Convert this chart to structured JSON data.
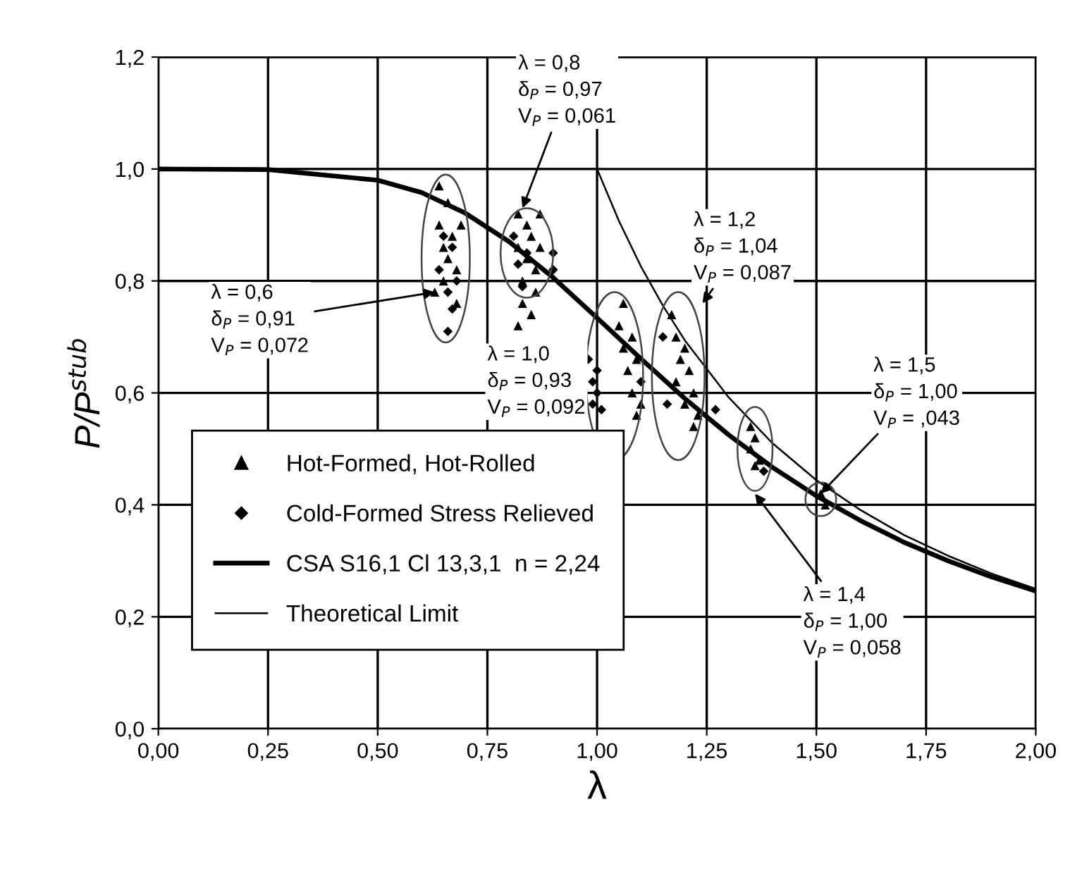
{
  "chart_data": {
    "type": "scatter",
    "xlabel": "λ",
    "ylabel": "P/P$^{stub}$",
    "xlim": [
      0,
      2
    ],
    "ylim": [
      0,
      1.2
    ],
    "xticks": [
      {
        "value": 0,
        "label": "0,00"
      },
      {
        "value": 0.25,
        "label": "0,25"
      },
      {
        "value": 0.5,
        "label": "0,50"
      },
      {
        "value": 0.75,
        "label": "0,75"
      },
      {
        "value": 1.0,
        "label": "1,00"
      },
      {
        "value": 1.25,
        "label": "1,25"
      },
      {
        "value": 1.5,
        "label": "1,50"
      },
      {
        "value": 1.75,
        "label": "1,75"
      },
      {
        "value": 2.0,
        "label": "2,00"
      }
    ],
    "yticks": [
      {
        "value": 0,
        "label": "0,0"
      },
      {
        "value": 0.2,
        "label": "0,2"
      },
      {
        "value": 0.4,
        "label": "0,4"
      },
      {
        "value": 0.6,
        "label": "0,6"
      },
      {
        "value": 0.8,
        "label": "0,8"
      },
      {
        "value": 1.0,
        "label": "1,0"
      },
      {
        "value": 1.2,
        "label": "1,2"
      }
    ],
    "grid": true,
    "legend": "bottom left",
    "series": [
      {
        "name": "Hot-Formed, Hot-Rolled",
        "marker": "triangle",
        "color": "#000000",
        "x": [
          0.64,
          0.64,
          0.65,
          0.65,
          0.66,
          0.66,
          0.67,
          0.68,
          0.68,
          0.69,
          0.63,
          0.82,
          0.82,
          0.83,
          0.83,
          0.84,
          0.84,
          0.85,
          0.86,
          0.86,
          0.87,
          0.87,
          0.82,
          0.85,
          1.05,
          1.06,
          1.06,
          1.07,
          1.08,
          1.08,
          1.09,
          1.09,
          1.1,
          1.17,
          1.18,
          1.18,
          1.19,
          1.2,
          1.2,
          1.21,
          1.22,
          1.22,
          1.23,
          1.35,
          1.35,
          1.36,
          1.36,
          1.37,
          1.51,
          1.52
        ],
        "values": [
          0.97,
          0.9,
          0.86,
          0.8,
          0.94,
          0.84,
          0.88,
          0.82,
          0.76,
          0.9,
          0.78,
          0.92,
          0.86,
          0.8,
          0.76,
          0.84,
          0.9,
          0.88,
          0.82,
          0.78,
          0.86,
          0.92,
          0.72,
          0.74,
          0.72,
          0.68,
          0.76,
          0.64,
          0.6,
          0.7,
          0.56,
          0.66,
          0.58,
          0.74,
          0.7,
          0.62,
          0.66,
          0.58,
          0.68,
          0.64,
          0.54,
          0.6,
          0.56,
          0.54,
          0.5,
          0.47,
          0.52,
          0.48,
          0.42,
          0.4
        ]
      },
      {
        "name": "Cold-Formed Stress Relieved",
        "marker": "diamond",
        "color": "#000000",
        "x": [
          0.64,
          0.65,
          0.66,
          0.67,
          0.67,
          0.68,
          0.66,
          0.81,
          0.82,
          0.83,
          0.84,
          0.9,
          0.9,
          0.98,
          0.99,
          0.99,
          1.0,
          1.0,
          1.01,
          1.1,
          1.15,
          1.16,
          1.27,
          1.38
        ],
        "values": [
          0.82,
          0.88,
          0.78,
          0.75,
          0.86,
          0.8,
          0.71,
          0.88,
          0.83,
          0.79,
          0.85,
          0.85,
          0.82,
          0.66,
          0.62,
          0.58,
          0.64,
          0.6,
          0.57,
          0.62,
          0.7,
          0.58,
          0.57,
          0.46
        ]
      },
      {
        "name": "CSA S16,1 Cl 13,3,1  n = 2,24",
        "type": "line",
        "color": "#000000",
        "x": [
          0,
          0.25,
          0.5,
          0.6,
          0.7,
          0.8,
          0.9,
          1.0,
          1.1,
          1.2,
          1.3,
          1.4,
          1.5,
          1.6,
          1.7,
          1.8,
          1.9,
          2.0
        ],
        "values": [
          1.0,
          0.999,
          0.98,
          0.958,
          0.921,
          0.87,
          0.806,
          0.734,
          0.661,
          0.59,
          0.525,
          0.467,
          0.416,
          0.372,
          0.333,
          0.3,
          0.271,
          0.246
        ]
      },
      {
        "name": "Theoretical Limit",
        "type": "line",
        "color": "#000000",
        "x": [
          0,
          1.0,
          1.05,
          1.1,
          1.15,
          1.2,
          1.3,
          1.4,
          1.5,
          1.6,
          1.7,
          1.8,
          1.9,
          2.0
        ],
        "values": [
          1.0,
          1.0,
          0.907,
          0.826,
          0.756,
          0.694,
          0.592,
          0.51,
          0.444,
          0.391,
          0.346,
          0.309,
          0.277,
          0.25
        ]
      }
    ],
    "annotations": [
      {
        "text": "λ = 0,6\nδ$_{P}$ = 0,91\nV$_{P}$ = 0,072",
        "x": 0.63,
        "y": 0.78
      },
      "λ = 0,8\nδ$_{P}$ = 0,97\nV$_{P}$ = 0,061",
      "λ = 1,0\nδ$_{P}$ = 0,93\nV$_{P}$ = 0,092",
      "λ = 1,2\nδ$_{P}$ = 1,04\nV$_{P}$ = 0,087",
      {
        "text": "λ = 1,5\nδ$_{P}$ = 1,00\nV$_{P}$ = ,043",
        "x": 1.51,
        "y": 0.42
      },
      "λ = 1,4\nδ$_{P}$ = 1,00\nV$_{P}$ = 0,058"
    ]
  }
}
